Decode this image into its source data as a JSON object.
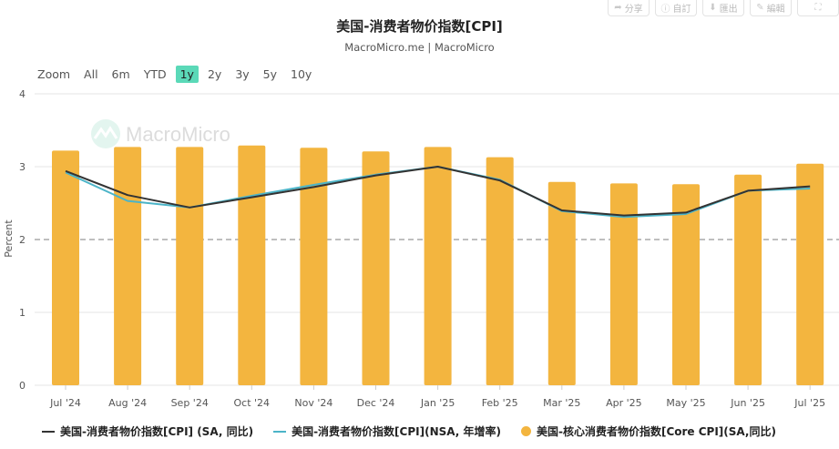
{
  "toolbar": {
    "buttons": [
      {
        "icon": "share-icon",
        "label": "分享"
      },
      {
        "icon": "info-icon",
        "label": "自訂"
      },
      {
        "icon": "download-icon",
        "label": "匯出"
      },
      {
        "icon": "edit-icon",
        "label": "編輯"
      },
      {
        "icon": "fullscreen-icon",
        "label": ""
      }
    ]
  },
  "zoom": {
    "label": "Zoom",
    "options": [
      "All",
      "6m",
      "YTD",
      "1y",
      "2y",
      "3y",
      "5y",
      "10y"
    ],
    "active": "1y"
  },
  "watermark": "MacroMicro",
  "chart_data": {
    "type": "bar+line",
    "title": "美国-消费者物价指数[CPI]",
    "subtitle": "MacroMicro.me | MacroMicro",
    "ylabel": "Percent",
    "ylim": [
      0,
      4
    ],
    "yticks": [
      "0",
      "1",
      "2",
      "3",
      "4"
    ],
    "reference_line": 2,
    "grid": true,
    "legend_position": "bottom",
    "categories": [
      "Jul '24",
      "Aug '24",
      "Sep '24",
      "Oct '24",
      "Nov '24",
      "Dec '24",
      "Jan '25",
      "Feb '25",
      "Mar '25",
      "Apr '25",
      "May '25",
      "Jun '25",
      "Jul '25"
    ],
    "series": [
      {
        "name": "美国-消费者物价指数[CPI] (SA, 同比)",
        "type": "line",
        "color": "#333333",
        "values": [
          2.94,
          2.61,
          2.44,
          2.58,
          2.72,
          2.88,
          3.0,
          2.81,
          2.4,
          2.33,
          2.37,
          2.67,
          2.73
        ]
      },
      {
        "name": "美国-消费者物价指数[CPI](NSA, 年增率)",
        "type": "line",
        "color": "#4bb4c8",
        "values": [
          2.92,
          2.53,
          2.44,
          2.6,
          2.75,
          2.89,
          3.0,
          2.82,
          2.39,
          2.31,
          2.35,
          2.67,
          2.7
        ]
      },
      {
        "name": "美国-核心消费者物价指数[Core CPI](SA,同比)",
        "type": "bar",
        "color": "#f3b53f",
        "values": [
          3.22,
          3.27,
          3.27,
          3.29,
          3.26,
          3.21,
          3.27,
          3.13,
          2.79,
          2.77,
          2.76,
          2.89,
          3.04
        ]
      }
    ]
  }
}
